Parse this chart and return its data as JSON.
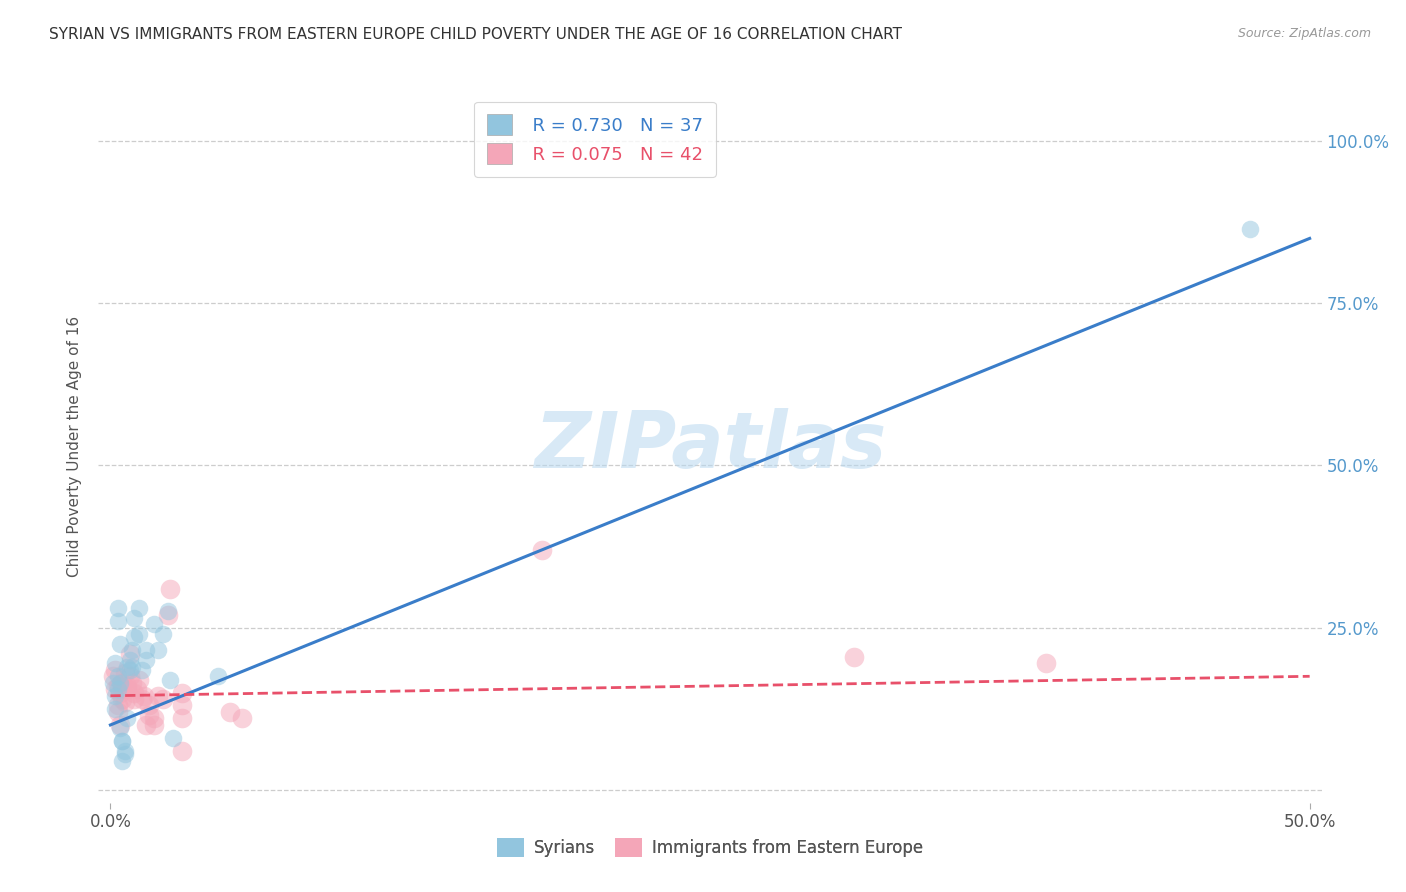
{
  "title": "SYRIAN VS IMMIGRANTS FROM EASTERN EUROPE CHILD POVERTY UNDER THE AGE OF 16 CORRELATION CHART",
  "source": "Source: ZipAtlas.com",
  "ylabel": "Child Poverty Under the Age of 16",
  "xlim": [
    -0.005,
    0.505
  ],
  "ylim": [
    -0.02,
    1.08
  ],
  "xticks": [
    0.0,
    0.5
  ],
  "xticklabels": [
    "0.0%",
    "50.0%"
  ],
  "yticks": [
    0.0,
    0.25,
    0.5,
    0.75,
    1.0
  ],
  "yticklabels": [
    "",
    "25.0%",
    "50.0%",
    "75.0%",
    "100.0%"
  ],
  "watermark": "ZIPatlas",
  "blue_R": "R = 0.730",
  "blue_N": "N = 37",
  "pink_R": "R = 0.075",
  "pink_N": "N = 42",
  "blue_color": "#92c5de",
  "pink_color": "#f4a6b8",
  "blue_line_color": "#3a7dc9",
  "pink_line_color": "#e8506a",
  "grid_color": "#c8c8c8",
  "title_color": "#333333",
  "axis_label_color": "#555555",
  "right_tick_color": "#5599cc",
  "legend_label_blue": "Syrians",
  "legend_label_pink": "Immigrants from Eastern Europe",
  "blue_scatter": [
    [
      0.001,
      0.165
    ],
    [
      0.002,
      0.195
    ],
    [
      0.002,
      0.145
    ],
    [
      0.002,
      0.125
    ],
    [
      0.003,
      0.175
    ],
    [
      0.003,
      0.155
    ],
    [
      0.003,
      0.28
    ],
    [
      0.003,
      0.26
    ],
    [
      0.004,
      0.225
    ],
    [
      0.004,
      0.165
    ],
    [
      0.004,
      0.095
    ],
    [
      0.005,
      0.045
    ],
    [
      0.005,
      0.075
    ],
    [
      0.005,
      0.075
    ],
    [
      0.006,
      0.06
    ],
    [
      0.006,
      0.055
    ],
    [
      0.007,
      0.11
    ],
    [
      0.007,
      0.19
    ],
    [
      0.008,
      0.185
    ],
    [
      0.008,
      0.2
    ],
    [
      0.009,
      0.215
    ],
    [
      0.009,
      0.19
    ],
    [
      0.01,
      0.265
    ],
    [
      0.01,
      0.235
    ],
    [
      0.012,
      0.28
    ],
    [
      0.012,
      0.24
    ],
    [
      0.013,
      0.185
    ],
    [
      0.015,
      0.2
    ],
    [
      0.015,
      0.215
    ],
    [
      0.018,
      0.255
    ],
    [
      0.02,
      0.215
    ],
    [
      0.022,
      0.24
    ],
    [
      0.024,
      0.275
    ],
    [
      0.025,
      0.17
    ],
    [
      0.026,
      0.08
    ],
    [
      0.045,
      0.175
    ],
    [
      0.475,
      0.865
    ]
  ],
  "pink_scatter": [
    [
      0.001,
      0.175
    ],
    [
      0.002,
      0.185
    ],
    [
      0.002,
      0.155
    ],
    [
      0.003,
      0.16
    ],
    [
      0.003,
      0.13
    ],
    [
      0.003,
      0.12
    ],
    [
      0.004,
      0.15
    ],
    [
      0.004,
      0.1
    ],
    [
      0.005,
      0.14
    ],
    [
      0.005,
      0.155
    ],
    [
      0.005,
      0.165
    ],
    [
      0.006,
      0.18
    ],
    [
      0.006,
      0.135
    ],
    [
      0.007,
      0.16
    ],
    [
      0.007,
      0.155
    ],
    [
      0.008,
      0.21
    ],
    [
      0.008,
      0.175
    ],
    [
      0.009,
      0.165
    ],
    [
      0.01,
      0.15
    ],
    [
      0.01,
      0.14
    ],
    [
      0.011,
      0.155
    ],
    [
      0.012,
      0.17
    ],
    [
      0.013,
      0.14
    ],
    [
      0.014,
      0.145
    ],
    [
      0.015,
      0.1
    ],
    [
      0.016,
      0.13
    ],
    [
      0.016,
      0.115
    ],
    [
      0.018,
      0.11
    ],
    [
      0.018,
      0.1
    ],
    [
      0.02,
      0.145
    ],
    [
      0.022,
      0.14
    ],
    [
      0.024,
      0.27
    ],
    [
      0.025,
      0.31
    ],
    [
      0.03,
      0.15
    ],
    [
      0.03,
      0.13
    ],
    [
      0.03,
      0.11
    ],
    [
      0.03,
      0.06
    ],
    [
      0.05,
      0.12
    ],
    [
      0.055,
      0.11
    ],
    [
      0.18,
      0.37
    ],
    [
      0.31,
      0.205
    ],
    [
      0.39,
      0.195
    ]
  ],
  "blue_line_x": [
    0.0,
    0.5
  ],
  "blue_line_y": [
    0.1,
    0.85
  ],
  "pink_line_x": [
    0.0,
    0.5
  ],
  "pink_line_y": [
    0.145,
    0.175
  ],
  "dot_size_blue": 160,
  "dot_size_pink": 200,
  "dot_alpha": 0.5
}
